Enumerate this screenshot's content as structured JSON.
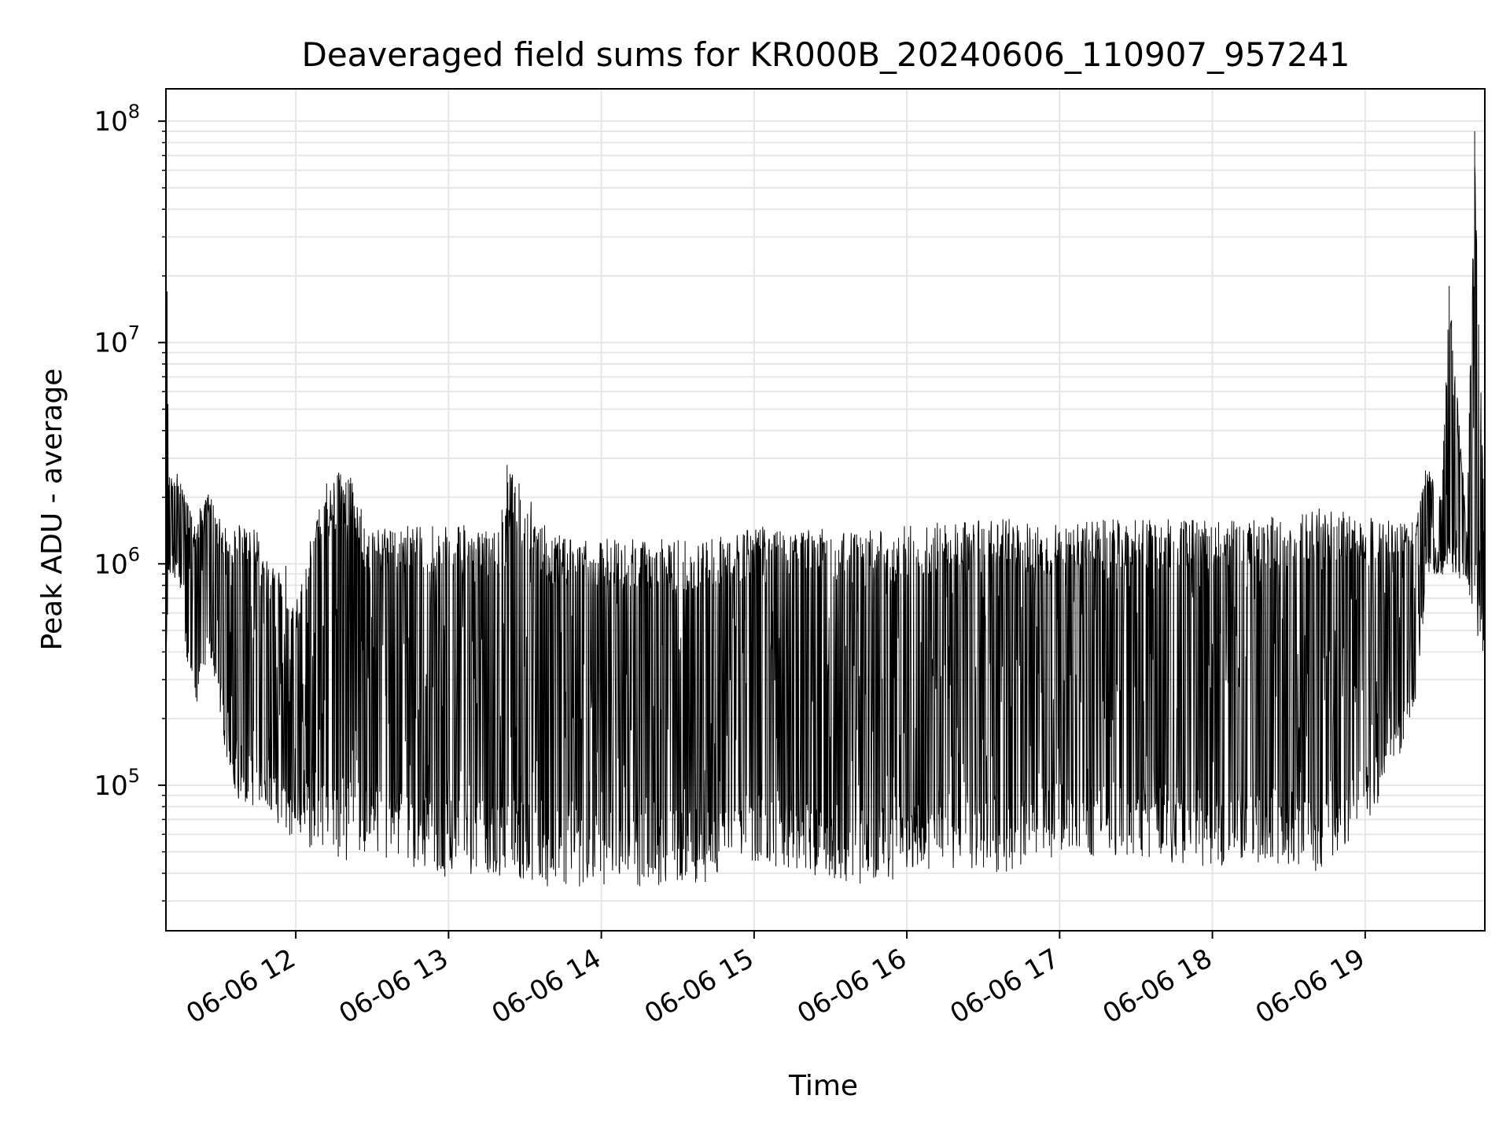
{
  "chart_data": {
    "type": "line",
    "title": "Deaveraged field sums for KR000B_20240606_110907_957241",
    "xlabel": "Time",
    "ylabel": "Peak ADU - average",
    "yscale": "log",
    "ylim": [
      22000,
      140000000
    ],
    "xlim": [
      "2024-06-06 11:09:00",
      "2024-06-06 19:47:00"
    ],
    "grid": true,
    "x_tick_labels": [
      "06-06 12",
      "06-06 13",
      "06-06 14",
      "06-06 15",
      "06-06 16",
      "06-06 17",
      "06-06 18",
      "06-06 19"
    ],
    "x_tick_times": [
      "2024-06-06 12:00:00",
      "2024-06-06 13:00:00",
      "2024-06-06 14:00:00",
      "2024-06-06 15:00:00",
      "2024-06-06 16:00:00",
      "2024-06-06 17:00:00",
      "2024-06-06 18:00:00",
      "2024-06-06 19:00:00"
    ],
    "y_ticks": [
      {
        "base": "10",
        "exp": "5",
        "value": 100000
      },
      {
        "base": "10",
        "exp": "6",
        "value": 1000000
      },
      {
        "base": "10",
        "exp": "7",
        "value": 10000000
      },
      {
        "base": "10",
        "exp": "8",
        "value": 100000000
      }
    ],
    "series": [
      {
        "color": "#000000",
        "x": [
          "2024-06-06 11:09:00",
          "2024-06-06 11:09:30",
          "2024-06-06 11:10:00",
          "2024-06-06 11:14:00",
          "2024-06-06 11:20:00",
          "2024-06-06 11:26:00",
          "2024-06-06 11:31:00",
          "2024-06-06 11:38:00",
          "2024-06-06 11:46:00",
          "2024-06-06 11:50:00",
          "2024-06-06 11:56:00",
          "2024-06-06 12:00:00",
          "2024-06-06 12:10:00",
          "2024-06-06 12:20:00",
          "2024-06-06 12:29:00",
          "2024-06-06 12:40:00",
          "2024-06-06 13:00:00",
          "2024-06-06 13:20:00",
          "2024-06-06 13:23:00",
          "2024-06-06 13:40:00",
          "2024-06-06 14:00:00",
          "2024-06-06 14:20:00",
          "2024-06-06 14:40:00",
          "2024-06-06 15:00:00",
          "2024-06-06 15:20:00",
          "2024-06-06 15:40:00",
          "2024-06-06 16:00:00",
          "2024-06-06 16:20:00",
          "2024-06-06 16:40:00",
          "2024-06-06 17:00:00",
          "2024-06-06 17:20:00",
          "2024-06-06 17:40:00",
          "2024-06-06 18:00:00",
          "2024-06-06 18:20:00",
          "2024-06-06 18:40:00",
          "2024-06-06 19:00:00",
          "2024-06-06 19:20:00",
          "2024-06-06 19:24:00",
          "2024-06-06 19:30:00",
          "2024-06-06 19:33:00",
          "2024-06-06 19:40:00",
          "2024-06-06 19:43:00",
          "2024-06-06 19:47:00"
        ],
        "low": [
          350000,
          350000,
          900000,
          800000,
          170000,
          400000,
          160000,
          80000,
          80000,
          60000,
          60000,
          55000,
          50000,
          45000,
          50000,
          45000,
          38000,
          38000,
          33000,
          35000,
          34000,
          35000,
          36000,
          45000,
          40000,
          35000,
          38000,
          42000,
          40000,
          48000,
          48000,
          45000,
          42000,
          45000,
          40000,
          60000,
          200000,
          900000,
          900000,
          800000,
          800000,
          400000,
          300000
        ],
        "high": [
          1500000,
          17000000,
          2500000,
          2600000,
          1600000,
          2100000,
          1500000,
          1500000,
          1400000,
          1000000,
          1000000,
          700000,
          2200000,
          2800000,
          1400000,
          1500000,
          1500000,
          1500000,
          2800000,
          1400000,
          1300000,
          1300000,
          1300000,
          1500000,
          1500000,
          1400000,
          1500000,
          1600000,
          1600000,
          1500000,
          1600000,
          1600000,
          1600000,
          1600000,
          1800000,
          1700000,
          1600000,
          2800000,
          2000000,
          18000000,
          1400000,
          90000000,
          1300000
        ]
      }
    ]
  }
}
